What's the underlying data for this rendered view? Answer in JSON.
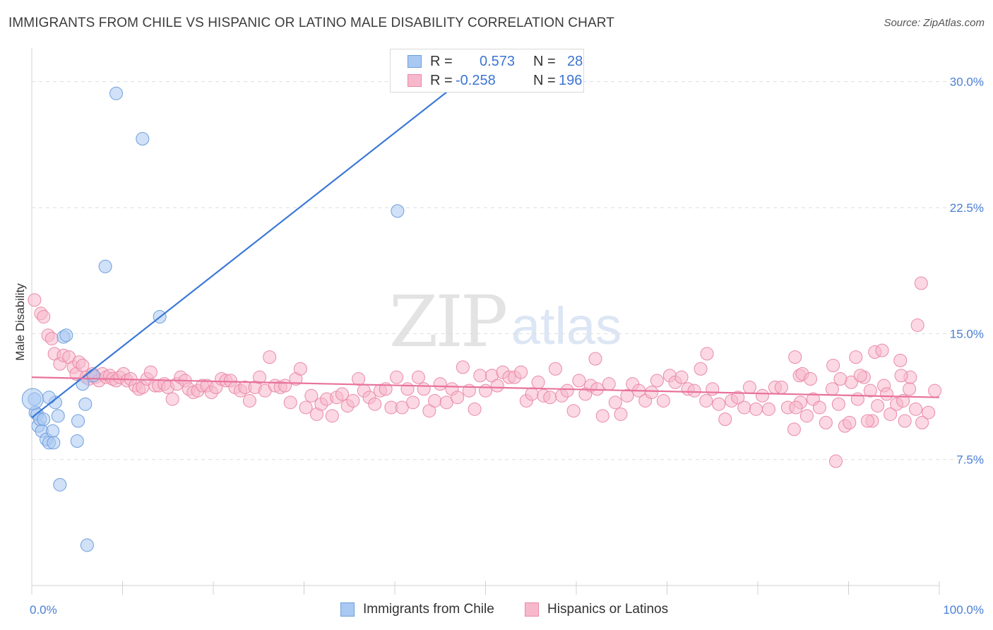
{
  "header": {
    "title": "IMMIGRANTS FROM CHILE VS HISPANIC OR LATINO MALE DISABILITY CORRELATION CHART",
    "source": "Source: ZipAtlas.com"
  },
  "watermark": {
    "zip": "ZIP",
    "atlas": "atlas"
  },
  "legend_top": {
    "rows": [
      {
        "r_label": "R =",
        "r_value": "0.573",
        "n_label": "N =",
        "n_value": "28",
        "color": "#a9c8f2",
        "stroke": "#6f9edc"
      },
      {
        "r_label": "R =",
        "r_value": "-0.258",
        "n_label": "N =",
        "n_value": "196",
        "color": "#f7b8cc",
        "stroke": "#e98aa8"
      }
    ]
  },
  "legend_bottom": {
    "items": [
      {
        "label": "Immigrants from Chile",
        "color": "#a9c8f2",
        "stroke": "#6f9edc"
      },
      {
        "label": "Hispanics or Latinos",
        "color": "#f7b8cc",
        "stroke": "#e98aa8"
      }
    ]
  },
  "chart_data": {
    "type": "scatter",
    "title": "IMMIGRANTS FROM CHILE VS HISPANIC OR LATINO MALE DISABILITY CORRELATION CHART",
    "xlabel": "",
    "ylabel": "Male Disability",
    "xlim": [
      0,
      100
    ],
    "ylim": [
      0,
      31.5
    ],
    "x_tick_labels": [
      "0.0%",
      "100.0%"
    ],
    "y_ticks": [
      7.5,
      15.0,
      22.5,
      30.0
    ],
    "y_tick_labels": [
      "7.5%",
      "15.0%",
      "22.5%",
      "30.0%"
    ],
    "grid": true,
    "series": [
      {
        "name": "Immigrants from Chile",
        "color": "#a9c8f2",
        "stroke": "#6f9edc",
        "line_color": "#3a78d6",
        "trend": {
          "x0": 0.0,
          "y0": 10.0,
          "x1": 46.0,
          "y1": 29.5
        },
        "points": [
          [
            0.3,
            11.1
          ],
          [
            0.4,
            10.3
          ],
          [
            0.6,
            10.2
          ],
          [
            0.7,
            9.5
          ],
          [
            0.9,
            9.9
          ],
          [
            1.1,
            9.2
          ],
          [
            1.3,
            9.9
          ],
          [
            1.6,
            8.7
          ],
          [
            1.9,
            8.5
          ],
          [
            2.3,
            9.2
          ],
          [
            2.4,
            8.5
          ],
          [
            2.6,
            10.9
          ],
          [
            2.9,
            10.1
          ],
          [
            3.1,
            6.0
          ],
          [
            3.5,
            14.8
          ],
          [
            3.8,
            14.9
          ],
          [
            5.0,
            8.6
          ],
          [
            5.1,
            9.8
          ],
          [
            5.6,
            12.0
          ],
          [
            5.9,
            10.8
          ],
          [
            6.1,
            2.4
          ],
          [
            6.8,
            12.5
          ],
          [
            8.1,
            19.0
          ],
          [
            9.3,
            29.3
          ],
          [
            12.2,
            26.6
          ],
          [
            14.1,
            16.0
          ],
          [
            40.3,
            22.3
          ],
          [
            1.9,
            11.2
          ]
        ]
      },
      {
        "name": "Hispanics or Latinos",
        "color": "#f7b8cc",
        "stroke": "#e98aa8",
        "line_color": "#e8729c",
        "trend": {
          "x0": 0.0,
          "y0": 12.4,
          "x1": 100.0,
          "y1": 11.2
        },
        "points": [
          [
            0.3,
            17.0
          ],
          [
            1.0,
            16.2
          ],
          [
            1.3,
            16.0
          ],
          [
            1.8,
            14.9
          ],
          [
            2.2,
            14.7
          ],
          [
            2.5,
            13.8
          ],
          [
            3.1,
            13.2
          ],
          [
            3.5,
            13.7
          ],
          [
            4.1,
            13.6
          ],
          [
            4.6,
            13.0
          ],
          [
            4.9,
            12.6
          ],
          [
            5.2,
            13.3
          ],
          [
            5.6,
            13.1
          ],
          [
            6.0,
            12.4
          ],
          [
            6.3,
            12.3
          ],
          [
            6.7,
            12.6
          ],
          [
            7.0,
            12.4
          ],
          [
            7.4,
            12.2
          ],
          [
            7.8,
            12.6
          ],
          [
            8.2,
            12.4
          ],
          [
            8.6,
            12.5
          ],
          [
            8.9,
            12.3
          ],
          [
            9.3,
            12.2
          ],
          [
            9.7,
            12.4
          ],
          [
            10.1,
            12.6
          ],
          [
            10.5,
            12.2
          ],
          [
            10.9,
            12.3
          ],
          [
            11.4,
            11.9
          ],
          [
            11.8,
            11.7
          ],
          [
            12.2,
            11.8
          ],
          [
            12.7,
            12.3
          ],
          [
            13.1,
            12.7
          ],
          [
            13.6,
            11.9
          ],
          [
            14.0,
            11.9
          ],
          [
            14.6,
            12.0
          ],
          [
            15.0,
            11.8
          ],
          [
            15.5,
            11.1
          ],
          [
            16.0,
            12.0
          ],
          [
            16.4,
            12.4
          ],
          [
            16.9,
            12.2
          ],
          [
            17.3,
            11.7
          ],
          [
            17.8,
            11.5
          ],
          [
            18.3,
            11.6
          ],
          [
            18.8,
            11.9
          ],
          [
            19.3,
            11.9
          ],
          [
            19.8,
            11.5
          ],
          [
            20.3,
            11.8
          ],
          [
            20.9,
            12.3
          ],
          [
            21.4,
            12.2
          ],
          [
            21.9,
            12.2
          ],
          [
            22.4,
            11.8
          ],
          [
            23.0,
            11.6
          ],
          [
            23.5,
            11.8
          ],
          [
            24.0,
            11.0
          ],
          [
            24.6,
            11.8
          ],
          [
            25.1,
            12.4
          ],
          [
            25.7,
            11.6
          ],
          [
            26.2,
            13.6
          ],
          [
            26.8,
            11.9
          ],
          [
            27.4,
            11.8
          ],
          [
            27.9,
            11.9
          ],
          [
            28.5,
            10.9
          ],
          [
            29.1,
            12.3
          ],
          [
            29.6,
            12.9
          ],
          [
            30.2,
            10.6
          ],
          [
            30.8,
            11.3
          ],
          [
            31.4,
            10.2
          ],
          [
            31.9,
            10.8
          ],
          [
            32.5,
            11.1
          ],
          [
            33.1,
            10.1
          ],
          [
            33.6,
            11.2
          ],
          [
            34.2,
            11.4
          ],
          [
            34.8,
            10.7
          ],
          [
            35.4,
            11.0
          ],
          [
            36.0,
            12.3
          ],
          [
            36.6,
            11.6
          ],
          [
            37.2,
            11.2
          ],
          [
            37.8,
            10.8
          ],
          [
            38.4,
            11.6
          ],
          [
            39.0,
            11.7
          ],
          [
            39.6,
            10.6
          ],
          [
            40.2,
            12.4
          ],
          [
            40.8,
            10.6
          ],
          [
            41.4,
            11.7
          ],
          [
            42.0,
            10.9
          ],
          [
            42.6,
            12.4
          ],
          [
            43.2,
            11.7
          ],
          [
            43.8,
            10.4
          ],
          [
            44.4,
            11.0
          ],
          [
            45.0,
            12.0
          ],
          [
            45.7,
            10.9
          ],
          [
            46.3,
            11.7
          ],
          [
            46.9,
            11.2
          ],
          [
            47.5,
            13.0
          ],
          [
            48.2,
            11.6
          ],
          [
            48.8,
            10.5
          ],
          [
            49.4,
            12.5
          ],
          [
            50.0,
            11.6
          ],
          [
            50.7,
            12.5
          ],
          [
            51.3,
            11.9
          ],
          [
            51.9,
            12.7
          ],
          [
            52.6,
            12.4
          ],
          [
            53.2,
            12.4
          ],
          [
            53.9,
            12.7
          ],
          [
            54.5,
            11.0
          ],
          [
            55.1,
            11.4
          ],
          [
            55.8,
            12.1
          ],
          [
            56.4,
            11.3
          ],
          [
            57.1,
            11.2
          ],
          [
            57.7,
            12.9
          ],
          [
            58.4,
            11.3
          ],
          [
            59.0,
            11.6
          ],
          [
            59.7,
            10.4
          ],
          [
            60.3,
            12.2
          ],
          [
            61.0,
            11.4
          ],
          [
            61.6,
            11.9
          ],
          [
            62.3,
            11.7
          ],
          [
            62.9,
            10.1
          ],
          [
            63.6,
            12.0
          ],
          [
            64.3,
            10.9
          ],
          [
            64.9,
            10.2
          ],
          [
            65.6,
            11.3
          ],
          [
            66.2,
            12.0
          ],
          [
            66.9,
            11.6
          ],
          [
            67.6,
            11.0
          ],
          [
            68.3,
            11.5
          ],
          [
            68.9,
            12.2
          ],
          [
            69.6,
            11.0
          ],
          [
            70.3,
            12.5
          ],
          [
            70.9,
            12.1
          ],
          [
            71.6,
            12.4
          ],
          [
            72.3,
            11.7
          ],
          [
            73.0,
            11.6
          ],
          [
            73.7,
            12.9
          ],
          [
            74.3,
            11.0
          ],
          [
            75.0,
            11.7
          ],
          [
            75.7,
            10.8
          ],
          [
            76.4,
            9.9
          ],
          [
            77.1,
            11.0
          ],
          [
            77.8,
            11.2
          ],
          [
            78.5,
            10.6
          ],
          [
            79.1,
            11.8
          ],
          [
            79.8,
            10.5
          ],
          [
            80.5,
            11.3
          ],
          [
            81.2,
            10.5
          ],
          [
            81.9,
            11.8
          ],
          [
            82.6,
            11.8
          ],
          [
            83.3,
            10.6
          ],
          [
            84.0,
            9.3
          ],
          [
            84.7,
            10.9
          ],
          [
            85.4,
            10.1
          ],
          [
            86.1,
            11.1
          ],
          [
            86.8,
            10.6
          ],
          [
            87.5,
            9.7
          ],
          [
            88.2,
            11.7
          ],
          [
            88.9,
            10.8
          ],
          [
            89.6,
            9.5
          ],
          [
            90.3,
            12.1
          ],
          [
            91.0,
            11.1
          ],
          [
            91.7,
            12.4
          ],
          [
            92.4,
            11.6
          ],
          [
            93.2,
            10.7
          ],
          [
            93.9,
            11.9
          ],
          [
            94.6,
            10.2
          ],
          [
            95.3,
            10.8
          ],
          [
            96.0,
            11.0
          ],
          [
            96.7,
            11.7
          ],
          [
            97.4,
            10.5
          ],
          [
            98.1,
            9.7
          ],
          [
            98.8,
            10.3
          ],
          [
            99.5,
            11.6
          ],
          [
            84.6,
            12.5
          ],
          [
            84.1,
            13.6
          ],
          [
            84.9,
            12.6
          ],
          [
            85.8,
            12.3
          ],
          [
            88.3,
            13.1
          ],
          [
            89.1,
            12.3
          ],
          [
            90.8,
            13.6
          ],
          [
            91.3,
            12.5
          ],
          [
            92.6,
            9.8
          ],
          [
            92.9,
            13.9
          ],
          [
            93.7,
            14.0
          ],
          [
            95.7,
            13.4
          ],
          [
            96.8,
            12.4
          ],
          [
            97.6,
            15.5
          ],
          [
            98.0,
            18.0
          ],
          [
            95.8,
            12.5
          ],
          [
            94.2,
            11.4
          ],
          [
            88.6,
            7.4
          ],
          [
            90.1,
            9.7
          ],
          [
            92.1,
            9.8
          ],
          [
            96.2,
            9.8
          ],
          [
            74.4,
            13.8
          ],
          [
            62.1,
            13.5
          ],
          [
            84.2,
            10.6
          ]
        ]
      }
    ]
  }
}
